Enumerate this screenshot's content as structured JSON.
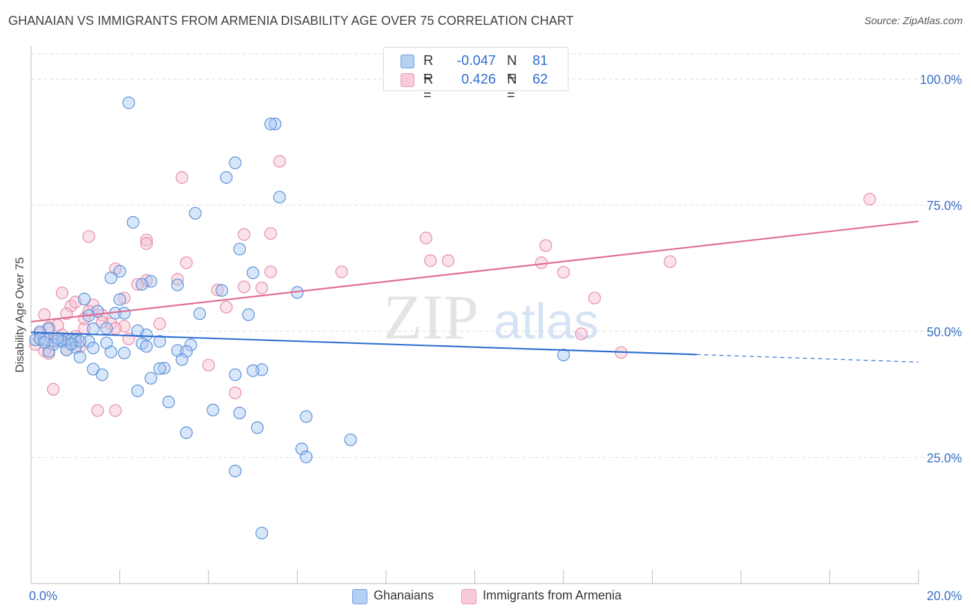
{
  "title": "GHANAIAN VS IMMIGRANTS FROM ARMENIA DISABILITY AGE OVER 75 CORRELATION CHART",
  "source": "Source: ZipAtlas.com",
  "watermark": {
    "zip": "ZIP",
    "atlas": "atlas"
  },
  "legend": {
    "rows": [
      {
        "r_label": "R =",
        "r_value": "-0.047",
        "n_label": "N =",
        "n_value": "81"
      },
      {
        "r_label": "R =",
        "r_value": "0.426",
        "n_label": "N =",
        "n_value": "62"
      }
    ]
  },
  "bottom_legend": {
    "ghanaians": "Ghanaians",
    "armenia": "Immigrants from Armenia"
  },
  "colors": {
    "blue_fill": "#a9c8f2",
    "blue_stroke": "#5a8fd8",
    "blue_line": "#2d6fcf",
    "pink_fill": "#f6bfd0",
    "pink_stroke": "#e58ba8",
    "pink_line": "#e06b92",
    "axis_label": "#3a6fc4",
    "grid": "#dddddd"
  },
  "chart_data": {
    "type": "scatter",
    "title": "GHANAIAN VS IMMIGRANTS FROM ARMENIA DISABILITY AGE OVER 75 CORRELATION CHART",
    "xlabel": "",
    "ylabel": "Disability Age Over 75",
    "xlim": [
      0,
      20
    ],
    "ylim": [
      0,
      105
    ],
    "x_tick_labels": [
      "0.0%",
      "20.0%"
    ],
    "y_ticks": [
      25,
      50,
      75,
      100
    ],
    "y_tick_labels": [
      "25.0%",
      "50.0%",
      "75.0%",
      "100.0%"
    ],
    "grid": true,
    "legend_position": "top-center",
    "series": [
      {
        "name": "Ghanaians",
        "r": -0.047,
        "n": 81,
        "trend": {
          "x0": 0,
          "y0": 49.8,
          "x1": 15,
          "y1": 45.4,
          "dashed_to_x": 20,
          "dashed_to_y": 43.9
        },
        "points": [
          [
            2.2,
            95.3
          ],
          [
            5.5,
            91.1
          ],
          [
            5.4,
            91.1
          ],
          [
            4.6,
            83.4
          ],
          [
            4.4,
            80.5
          ],
          [
            5.6,
            76.6
          ],
          [
            3.7,
            73.4
          ],
          [
            2.3,
            71.6
          ],
          [
            4.7,
            66.3
          ],
          [
            2.0,
            61.9
          ],
          [
            5.0,
            61.6
          ],
          [
            1.8,
            60.6
          ],
          [
            2.7,
            59.9
          ],
          [
            2.5,
            59.3
          ],
          [
            3.3,
            59.2
          ],
          [
            4.3,
            58.1
          ],
          [
            6.0,
            57.7
          ],
          [
            1.2,
            56.4
          ],
          [
            2.0,
            56.3
          ],
          [
            1.5,
            54.0
          ],
          [
            1.9,
            53.6
          ],
          [
            2.1,
            53.6
          ],
          [
            3.8,
            53.5
          ],
          [
            4.9,
            53.3
          ],
          [
            1.3,
            53.1
          ],
          [
            1.7,
            50.6
          ],
          [
            1.4,
            50.5
          ],
          [
            2.4,
            50.1
          ],
          [
            0.4,
            50.5
          ],
          [
            0.2,
            49.9
          ],
          [
            0.3,
            48.4
          ],
          [
            0.1,
            48.3
          ],
          [
            0.6,
            48.1
          ],
          [
            0.8,
            48.3
          ],
          [
            0.9,
            48.3
          ],
          [
            2.6,
            49.3
          ],
          [
            0.7,
            48.0
          ],
          [
            1.3,
            48.0
          ],
          [
            1.0,
            48.2
          ],
          [
            1.7,
            47.7
          ],
          [
            2.9,
            48.0
          ],
          [
            3.6,
            47.3
          ],
          [
            2.5,
            47.6
          ],
          [
            0.5,
            47.4
          ],
          [
            0.4,
            46.0
          ],
          [
            1.0,
            46.8
          ],
          [
            1.4,
            46.7
          ],
          [
            2.6,
            47.0
          ],
          [
            0.8,
            46.3
          ],
          [
            3.3,
            46.2
          ],
          [
            3.5,
            46.0
          ],
          [
            2.1,
            45.7
          ],
          [
            1.8,
            45.9
          ],
          [
            1.1,
            44.9
          ],
          [
            3.4,
            44.4
          ],
          [
            12.0,
            45.3
          ],
          [
            3.0,
            42.7
          ],
          [
            2.9,
            42.6
          ],
          [
            5.2,
            42.4
          ],
          [
            5.0,
            42.2
          ],
          [
            1.4,
            42.5
          ],
          [
            4.6,
            41.4
          ],
          [
            1.6,
            41.4
          ],
          [
            2.7,
            40.7
          ],
          [
            2.4,
            38.2
          ],
          [
            3.1,
            36.0
          ],
          [
            4.1,
            34.4
          ],
          [
            4.7,
            33.8
          ],
          [
            6.2,
            33.1
          ],
          [
            5.1,
            30.9
          ],
          [
            3.5,
            29.9
          ],
          [
            7.2,
            28.5
          ],
          [
            6.1,
            26.7
          ],
          [
            6.2,
            25.1
          ],
          [
            4.6,
            22.3
          ],
          [
            5.2,
            10.0
          ],
          [
            0.2,
            48.5
          ],
          [
            0.6,
            48.6
          ],
          [
            0.3,
            47.8
          ],
          [
            1.1,
            48.0
          ],
          [
            0.9,
            47.5
          ]
        ]
      },
      {
        "name": "Immigrants from Armenia",
        "r": 0.426,
        "n": 62,
        "trend": {
          "x0": 0,
          "y0": 51.9,
          "x1": 20,
          "y1": 71.8
        },
        "points": [
          [
            5.6,
            83.7
          ],
          [
            3.4,
            80.5
          ],
          [
            18.9,
            76.2
          ],
          [
            5.4,
            69.4
          ],
          [
            4.8,
            69.2
          ],
          [
            1.3,
            68.8
          ],
          [
            2.6,
            68.1
          ],
          [
            2.6,
            67.4
          ],
          [
            8.9,
            68.5
          ],
          [
            11.6,
            67.0
          ],
          [
            1.9,
            62.4
          ],
          [
            3.5,
            63.6
          ],
          [
            9.4,
            64.0
          ],
          [
            9.0,
            64.0
          ],
          [
            11.5,
            63.6
          ],
          [
            14.4,
            63.8
          ],
          [
            5.4,
            61.8
          ],
          [
            7.0,
            61.8
          ],
          [
            12.0,
            61.7
          ],
          [
            3.3,
            60.3
          ],
          [
            2.6,
            60.1
          ],
          [
            2.4,
            59.3
          ],
          [
            4.2,
            58.2
          ],
          [
            4.8,
            58.8
          ],
          [
            5.2,
            58.6
          ],
          [
            0.7,
            57.6
          ],
          [
            2.1,
            56.6
          ],
          [
            0.9,
            55.0
          ],
          [
            1.4,
            55.2
          ],
          [
            4.4,
            54.8
          ],
          [
            1.0,
            55.8
          ],
          [
            0.8,
            53.5
          ],
          [
            1.6,
            53.2
          ],
          [
            0.3,
            53.3
          ],
          [
            1.3,
            54.0
          ],
          [
            12.7,
            56.6
          ],
          [
            2.9,
            51.5
          ],
          [
            1.2,
            50.6
          ],
          [
            2.1,
            51.0
          ],
          [
            1.8,
            51.5
          ],
          [
            0.4,
            50.8
          ],
          [
            0.2,
            49.6
          ],
          [
            0.7,
            49.3
          ],
          [
            1.0,
            49.0
          ],
          [
            0.5,
            48.1
          ],
          [
            2.2,
            48.5
          ],
          [
            12.4,
            49.5
          ],
          [
            0.1,
            47.4
          ],
          [
            0.3,
            46.1
          ],
          [
            0.8,
            46.3
          ],
          [
            1.1,
            46.9
          ],
          [
            0.4,
            45.6
          ],
          [
            13.3,
            45.8
          ],
          [
            1.9,
            50.6
          ],
          [
            4.0,
            43.3
          ],
          [
            0.5,
            38.5
          ],
          [
            4.6,
            37.8
          ],
          [
            1.5,
            34.3
          ],
          [
            1.9,
            34.3
          ],
          [
            1.6,
            51.8
          ],
          [
            0.6,
            51.2
          ],
          [
            1.2,
            52.5
          ]
        ]
      }
    ]
  }
}
